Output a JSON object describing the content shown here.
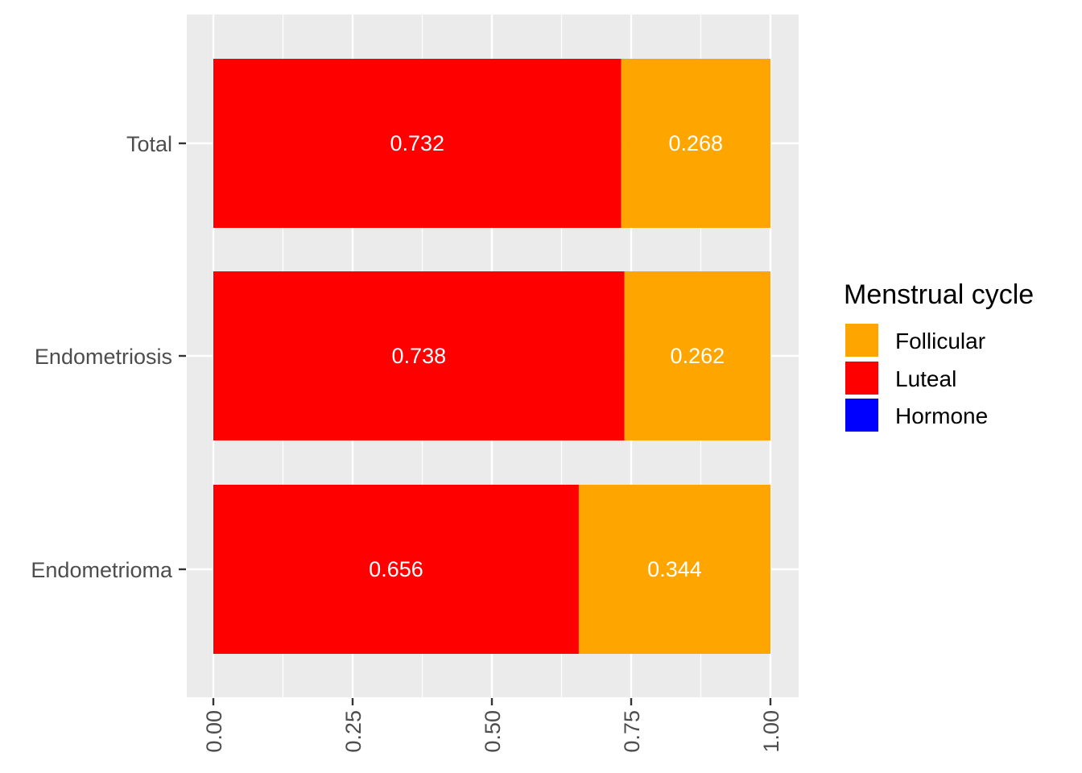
{
  "chart_data": {
    "type": "bar",
    "orientation": "horizontal",
    "stacked": true,
    "categories": [
      "Total",
      "Endometriosis",
      "Endometrioma"
    ],
    "series": [
      {
        "name": "Luteal",
        "values": [
          0.732,
          0.738,
          0.656
        ],
        "labels": [
          "0.732",
          "0.738",
          "0.656"
        ],
        "color": "#ff0000"
      },
      {
        "name": "Follicular",
        "values": [
          0.268,
          0.262,
          0.344
        ],
        "labels": [
          "0.268",
          "0.262",
          "0.344"
        ],
        "color": "#ffa500"
      }
    ],
    "xlim": [
      0,
      1
    ],
    "x_ticks": [
      0,
      0.25,
      0.5,
      0.75,
      1
    ],
    "x_tick_labels": [
      "0.00",
      "0.25",
      "0.50",
      "0.75",
      "1.00"
    ],
    "x_tick_label_rotation": -90,
    "grid": true,
    "panel_background": "#ebebeb",
    "legend": {
      "title": "Menstrual cycle",
      "placement": "right",
      "entries": [
        {
          "name": "Follicular",
          "color": "#ffa500"
        },
        {
          "name": "Luteal",
          "color": "#ff0000"
        },
        {
          "name": "Hormone",
          "color": "#0000ff"
        }
      ]
    }
  }
}
